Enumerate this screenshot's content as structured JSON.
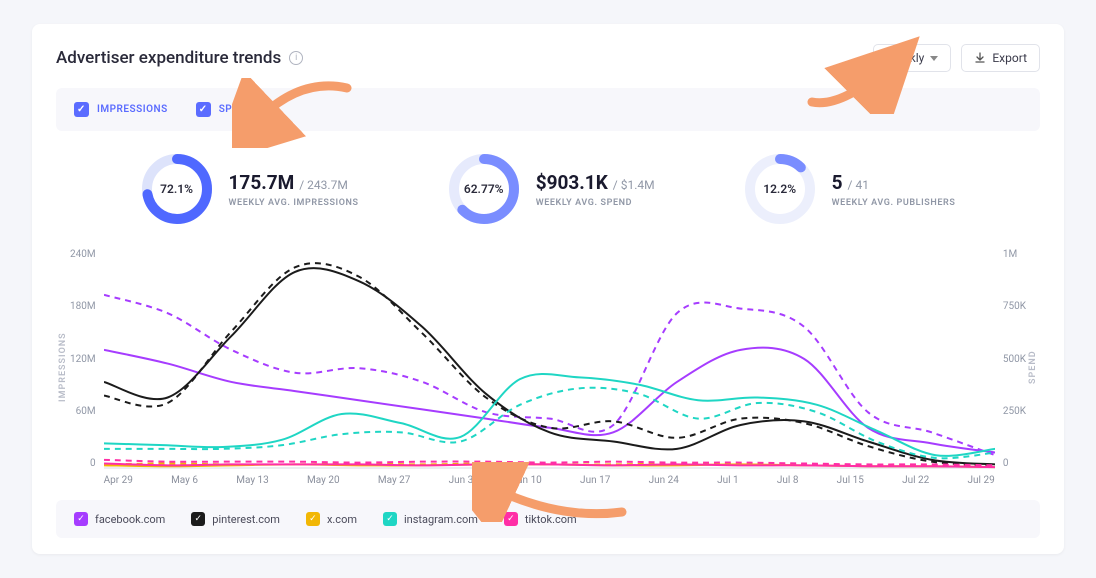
{
  "card": {
    "title": "Advertiser expenditure trends",
    "period_selector": {
      "label": "Weekly"
    },
    "export_label": "Export"
  },
  "filters": {
    "impressions": {
      "label": "IMPRESSIONS",
      "checked": true,
      "color": "#5b6cff"
    },
    "spend": {
      "label": "SPEND",
      "checked": true,
      "color": "#5b6cff"
    }
  },
  "stats": [
    {
      "pct": "72.1%",
      "pct_val": 72.1,
      "big": "175.7M",
      "sub": "/ 243.7M",
      "caption": "WEEKLY AVG. IMPRESSIONS",
      "ring_color": "#4f68ff",
      "track_color": "#dde3fb"
    },
    {
      "pct": "62.77%",
      "pct_val": 62.77,
      "big": "$903.1K",
      "sub": "/ $1.4M",
      "caption": "WEEKLY AVG. SPEND",
      "ring_color": "#7a8dff",
      "track_color": "#e6eafc"
    },
    {
      "pct": "12.2%",
      "pct_val": 12.2,
      "big": "5",
      "sub": "/ 41",
      "caption": "WEEKLY AVG. PUBLISHERS",
      "ring_color": "#7a8dff",
      "track_color": "#eceffc"
    }
  ],
  "chart": {
    "type": "line",
    "background_color": "#ffffff",
    "left_axis": {
      "label": "IMPRESSIONS",
      "ticks": [
        "240M",
        "180M",
        "120M",
        "60M",
        "0"
      ],
      "min": 0,
      "max": 240
    },
    "right_axis": {
      "label": "SPEND",
      "ticks": [
        "1M",
        "750K",
        "500K",
        "250K",
        "0"
      ],
      "min": 0,
      "max": 1000
    },
    "x_ticks": [
      "Apr 29",
      "May 6",
      "May 13",
      "May 20",
      "May 27",
      "Jun 3",
      "Jun 10",
      "Jun 17",
      "Jun 24",
      "Jul 1",
      "Jul 8",
      "Jul 15",
      "Jul 22",
      "Jul 29"
    ],
    "grid_color": "#eef0f5",
    "line_width_solid": 2,
    "line_width_dashed": 2,
    "dash_pattern": "6 5",
    "series": [
      {
        "name": "facebook",
        "color": "#a63cff",
        "solid": [
          130,
          115,
          95,
          85,
          75,
          65,
          55,
          45,
          40,
          95,
          130,
          120,
          45,
          28,
          18
        ],
        "dashed": [
          190,
          170,
          130,
          105,
          110,
          95,
          62,
          55,
          48,
          170,
          175,
          155,
          62,
          40,
          15
        ]
      },
      {
        "name": "pinterest",
        "color": "#1b1b1b",
        "solid": [
          95,
          78,
          145,
          215,
          205,
          155,
          82,
          40,
          30,
          22,
          48,
          52,
          30,
          10,
          5
        ],
        "dashed": [
          80,
          72,
          150,
          220,
          210,
          148,
          78,
          45,
          52,
          34,
          55,
          50,
          25,
          8,
          4
        ]
      },
      {
        "name": "x",
        "color": "#f2b705",
        "solid": [
          4,
          3,
          4,
          5,
          4,
          4,
          5,
          5,
          4,
          4,
          5,
          4,
          3,
          3,
          2
        ],
        "dashed": [
          5,
          6,
          5,
          5,
          6,
          5,
          6,
          5,
          5,
          6,
          5,
          5,
          4,
          4,
          3
        ]
      },
      {
        "name": "instagram",
        "color": "#1fd6c4",
        "solid": [
          28,
          26,
          24,
          32,
          60,
          50,
          35,
          98,
          100,
          92,
          75,
          78,
          70,
          42,
          15,
          22
        ],
        "dashed": [
          22,
          22,
          22,
          26,
          38,
          40,
          30,
          70,
          88,
          82,
          55,
          72,
          62,
          30,
          12,
          18
        ]
      },
      {
        "name": "tiktok",
        "color": "#ff2ea6",
        "solid": [
          6,
          4,
          5,
          5,
          5,
          4,
          5,
          5,
          4,
          5,
          4,
          4,
          3,
          3,
          2
        ],
        "dashed": [
          10,
          8,
          8,
          8,
          7,
          8,
          8,
          7,
          8,
          7,
          7,
          6,
          5,
          5,
          4
        ]
      }
    ]
  },
  "legend": [
    {
      "label": "facebook.com",
      "color": "#a63cff"
    },
    {
      "label": "pinterest.com",
      "color": "#1b1b1b"
    },
    {
      "label": "x.com",
      "color": "#f2b705"
    },
    {
      "label": "instagram.com",
      "color": "#1fd6c4"
    },
    {
      "label": "tiktok.com",
      "color": "#ff2ea6"
    }
  ],
  "annotation_arrow_color": "#f59d6b"
}
